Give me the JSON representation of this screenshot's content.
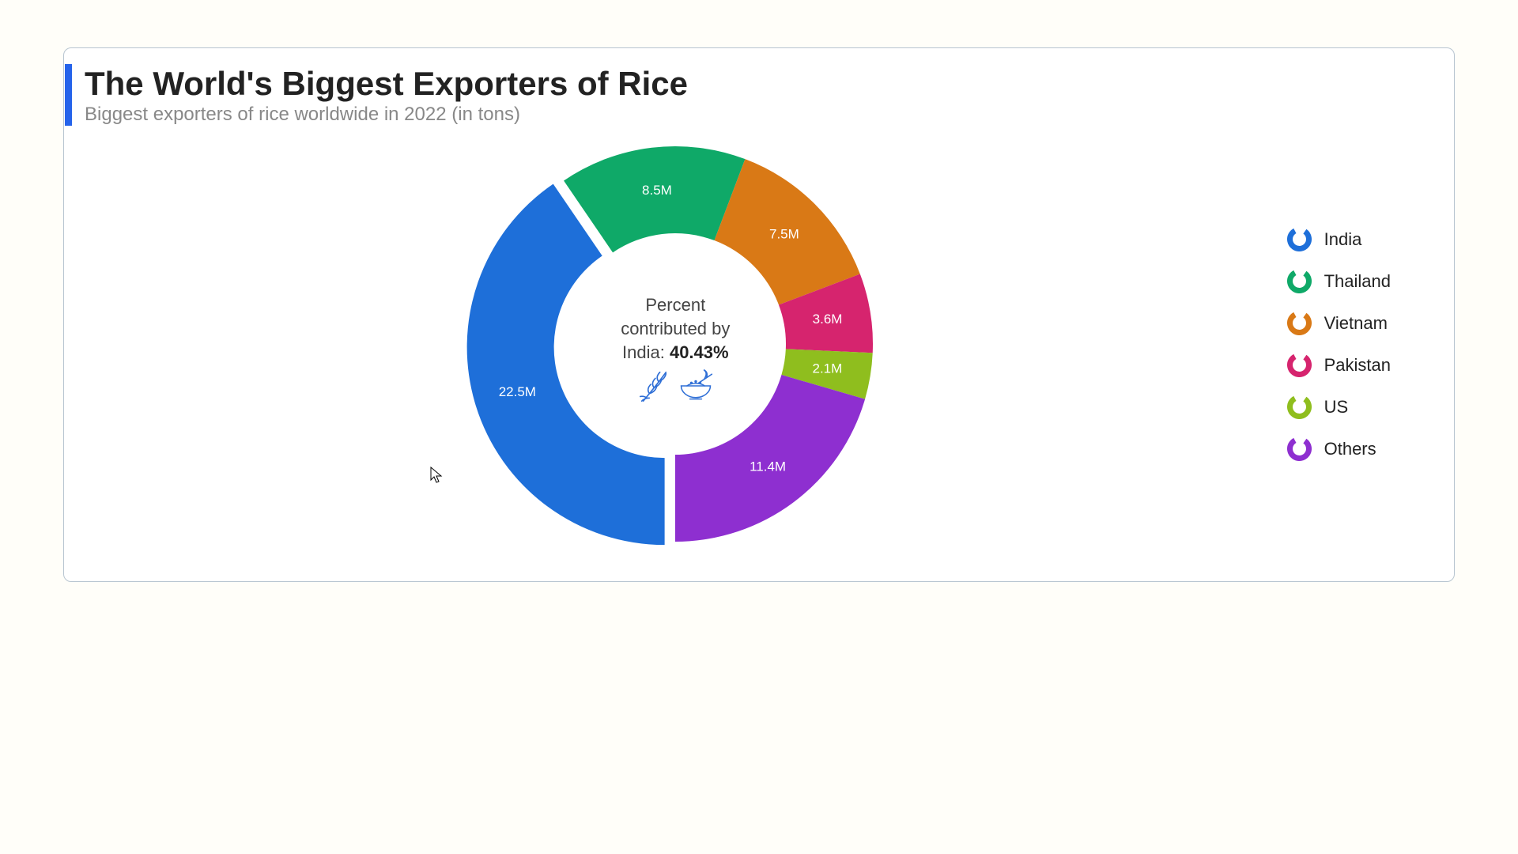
{
  "title": "The World's Biggest Exporters of Rice",
  "subtitle": "Biggest exporters of rice worldwide in 2022 (in tons)",
  "center_label_line1": "Percent",
  "center_label_line2": "contributed by",
  "center_label_country": "India:",
  "center_label_percent": "40.43%",
  "chart": {
    "type": "donut",
    "outer_radius": 250,
    "inner_radius": 140,
    "start_angle_deg": 90,
    "explode_index": 0,
    "explode_offset": 14,
    "background_color": "#ffffff",
    "label_color": "#ffffff",
    "label_fontsize": 17,
    "title_fontsize": 42,
    "subtitle_fontsize": 24,
    "subtitle_color": "#888888",
    "accent_bar_color": "#2563eb",
    "card_border_color": "#b8c5d0",
    "series": [
      {
        "name": "India",
        "value": 22.5,
        "label": "22.5M",
        "color": "#1e6fd9"
      },
      {
        "name": "Thailand",
        "value": 8.5,
        "label": "8.5M",
        "color": "#0fa968"
      },
      {
        "name": "Vietnam",
        "value": 7.5,
        "label": "7.5M",
        "color": "#d97916"
      },
      {
        "name": "Pakistan",
        "value": 3.6,
        "label": "3.6M",
        "color": "#d6246e"
      },
      {
        "name": "US",
        "value": 2.1,
        "label": "2.1M",
        "color": "#8fbe1e"
      },
      {
        "name": "Others",
        "value": 11.4,
        "label": "11.4M",
        "color": "#8e2fd0"
      }
    ]
  },
  "legend_icon_stroke_width": 7,
  "legend_icon_radius": 12
}
